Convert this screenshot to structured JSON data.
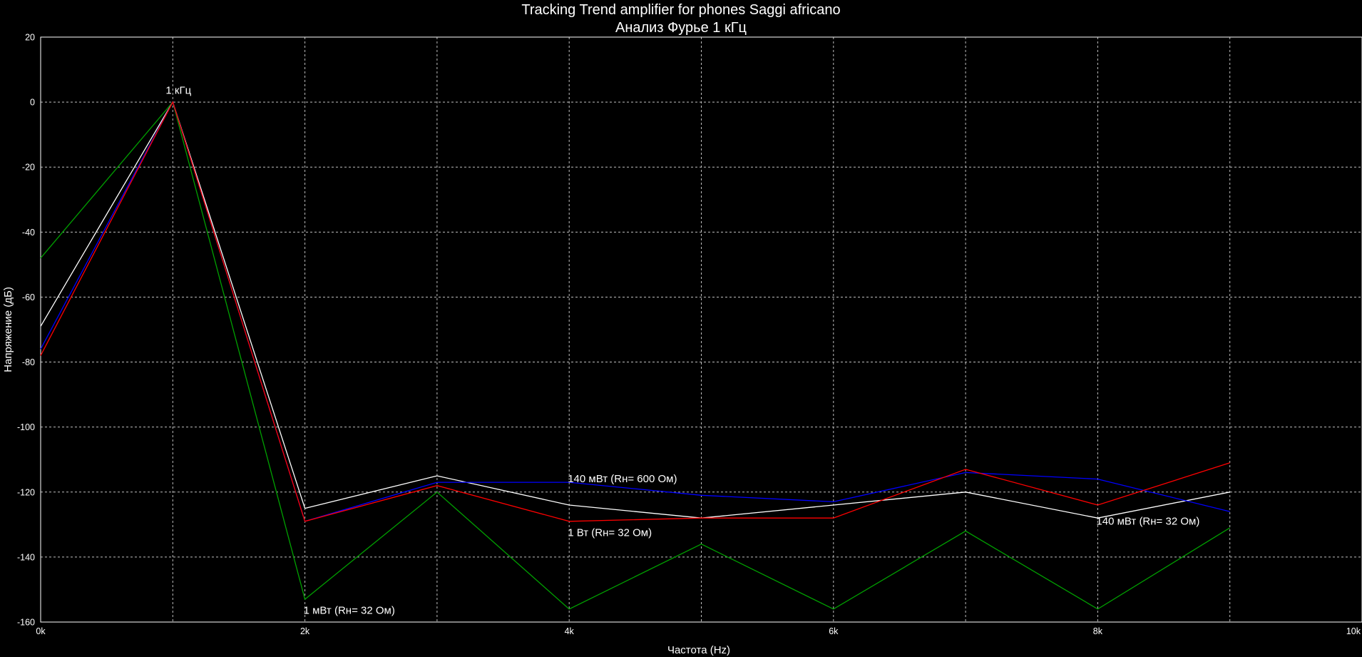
{
  "chart_data": {
    "type": "line",
    "title": "Tracking Trend amplifier for phones Saggi africano",
    "subtitle": "Анализ Фурье 1  кГц",
    "xlabel": "Частота (Hz)",
    "ylabel": "Напряжение (дБ)",
    "xlim": [
      0,
      10000
    ],
    "ylim": [
      -160,
      20
    ],
    "x_ticks": [
      0,
      2000,
      4000,
      6000,
      8000,
      10000
    ],
    "x_tick_labels": [
      "0k",
      "2k",
      "4k",
      "6k",
      "8k",
      "10k"
    ],
    "y_ticks": [
      20,
      0,
      -20,
      -40,
      -60,
      -80,
      -100,
      -120,
      -140,
      -160
    ],
    "y_tick_labels": [
      "20",
      "0",
      "-20",
      "-40",
      "-60",
      "-80",
      "-100",
      "-120",
      "-140",
      "-160"
    ],
    "grid": true,
    "x": [
      0,
      1000,
      2000,
      3000,
      4000,
      5000,
      6000,
      7000,
      8000,
      9000
    ],
    "series": [
      {
        "color": "#00a000",
        "values": [
          -48,
          0,
          -153,
          -120,
          -156,
          -136,
          -156,
          -132,
          -156,
          -131
        ]
      },
      {
        "color": "#ffffff",
        "values": [
          -69,
          0,
          -125,
          -115,
          -124,
          -128,
          -124,
          -120,
          -128,
          -120
        ]
      },
      {
        "color": "#0000ff",
        "values": [
          -76,
          0,
          -129,
          -117,
          -117,
          -121,
          -123,
          -114,
          -116,
          -126
        ]
      },
      {
        "color": "#ff0000",
        "values": [
          -78,
          0,
          -129,
          -118,
          -129,
          -128,
          -128,
          -113,
          -124,
          -111
        ]
      }
    ],
    "annotations": [
      {
        "text": "1 кГц",
        "x": 1000,
        "y": 2.5
      },
      {
        "text": "140 мВт (Rн= 600 Ом)",
        "x": 4000,
        "y": -117
      },
      {
        "text": "1 Вт (Rн= 32 Ом)",
        "x": 4000,
        "y": -133.5
      },
      {
        "text": "140 мВт (Rн= 32 Ом)",
        "x": 8000,
        "y": -130
      },
      {
        "text": "1 мВт (Rн= 32 Ом)",
        "x": 2000,
        "y": -157.5
      }
    ]
  }
}
